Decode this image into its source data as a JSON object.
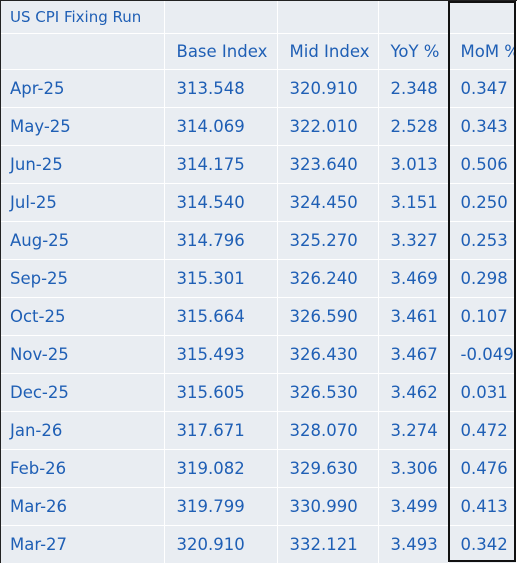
{
  "title": "US CPI Fixing Run",
  "columns": [
    "Base Index",
    "Mid Index",
    "YoY %",
    "MoM %"
  ],
  "rows": [
    {
      "month": "Apr-25",
      "base": "313.548",
      "mid": "320.910",
      "yoy": "2.348",
      "mom": "0.347"
    },
    {
      "month": "May-25",
      "base": "314.069",
      "mid": "322.010",
      "yoy": "2.528",
      "mom": "0.343"
    },
    {
      "month": "Jun-25",
      "base": "314.175",
      "mid": "323.640",
      "yoy": "3.013",
      "mom": "0.506"
    },
    {
      "month": "Jul-25",
      "base": "314.540",
      "mid": "324.450",
      "yoy": "3.151",
      "mom": "0.250"
    },
    {
      "month": "Aug-25",
      "base": "314.796",
      "mid": "325.270",
      "yoy": "3.327",
      "mom": "0.253"
    },
    {
      "month": "Sep-25",
      "base": "315.301",
      "mid": "326.240",
      "yoy": "3.469",
      "mom": "0.298"
    },
    {
      "month": "Oct-25",
      "base": "315.664",
      "mid": "326.590",
      "yoy": "3.461",
      "mom": "0.107"
    },
    {
      "month": "Nov-25",
      "base": "315.493",
      "mid": "326.430",
      "yoy": "3.467",
      "mom": "-0.049"
    },
    {
      "month": "Dec-25",
      "base": "315.605",
      "mid": "326.530",
      "yoy": "3.462",
      "mom": "0.031"
    },
    {
      "month": "Jan-26",
      "base": "317.671",
      "mid": "328.070",
      "yoy": "3.274",
      "mom": "0.472"
    },
    {
      "month": "Feb-26",
      "base": "319.082",
      "mid": "329.630",
      "yoy": "3.306",
      "mom": "0.476"
    },
    {
      "month": "Mar-26",
      "base": "319.799",
      "mid": "330.990",
      "yoy": "3.499",
      "mom": "0.413"
    },
    {
      "month": "Mar-27",
      "base": "320.910",
      "mid": "332.121",
      "yoy": "3.493",
      "mom": "0.342"
    }
  ],
  "colors": {
    "text": "#1f5fb5",
    "cell_bg": "#e9edf2",
    "grid": "#ffffff",
    "highlight_border": "#111111"
  }
}
